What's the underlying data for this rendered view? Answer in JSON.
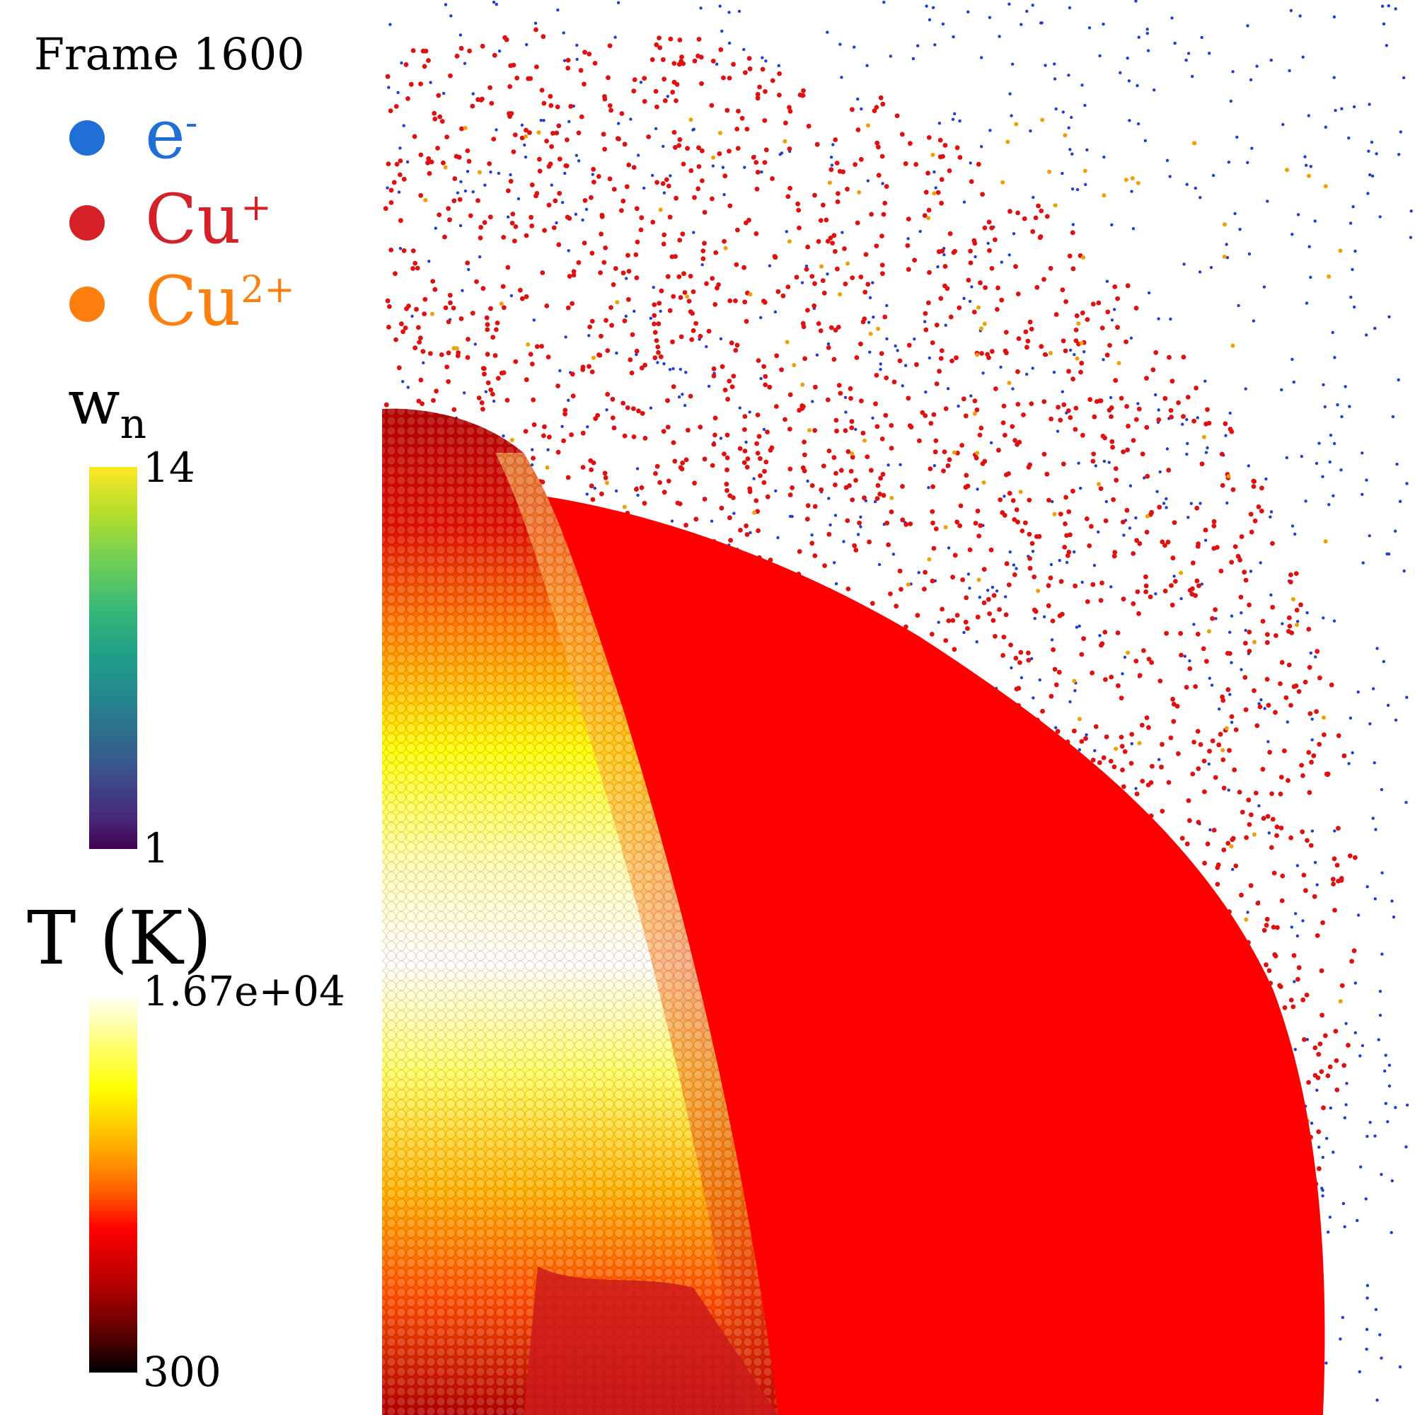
{
  "frame_label": "Frame 1600",
  "legend": [
    {
      "symbol": "e",
      "sup": "-",
      "color": "#1f6fd6",
      "marker": "blue-dot"
    },
    {
      "symbol": "Cu",
      "sup": "+",
      "color": "#d62027",
      "marker": "red-dot"
    },
    {
      "symbol": "Cu",
      "sup": "2+",
      "color": "#ff7f0e",
      "marker": "orange-dot"
    }
  ],
  "colorbar_wn": {
    "title_main": "w",
    "title_sub": "n",
    "max_label": "14",
    "min_label": "1"
  },
  "colorbar_T": {
    "title": "T (K)",
    "max_label": "1.67e+04",
    "min_label": "300"
  },
  "colors": {
    "electron": "#1f3fd0",
    "cu_plus": "#e01010",
    "cu_2plus": "#f0a000"
  }
}
